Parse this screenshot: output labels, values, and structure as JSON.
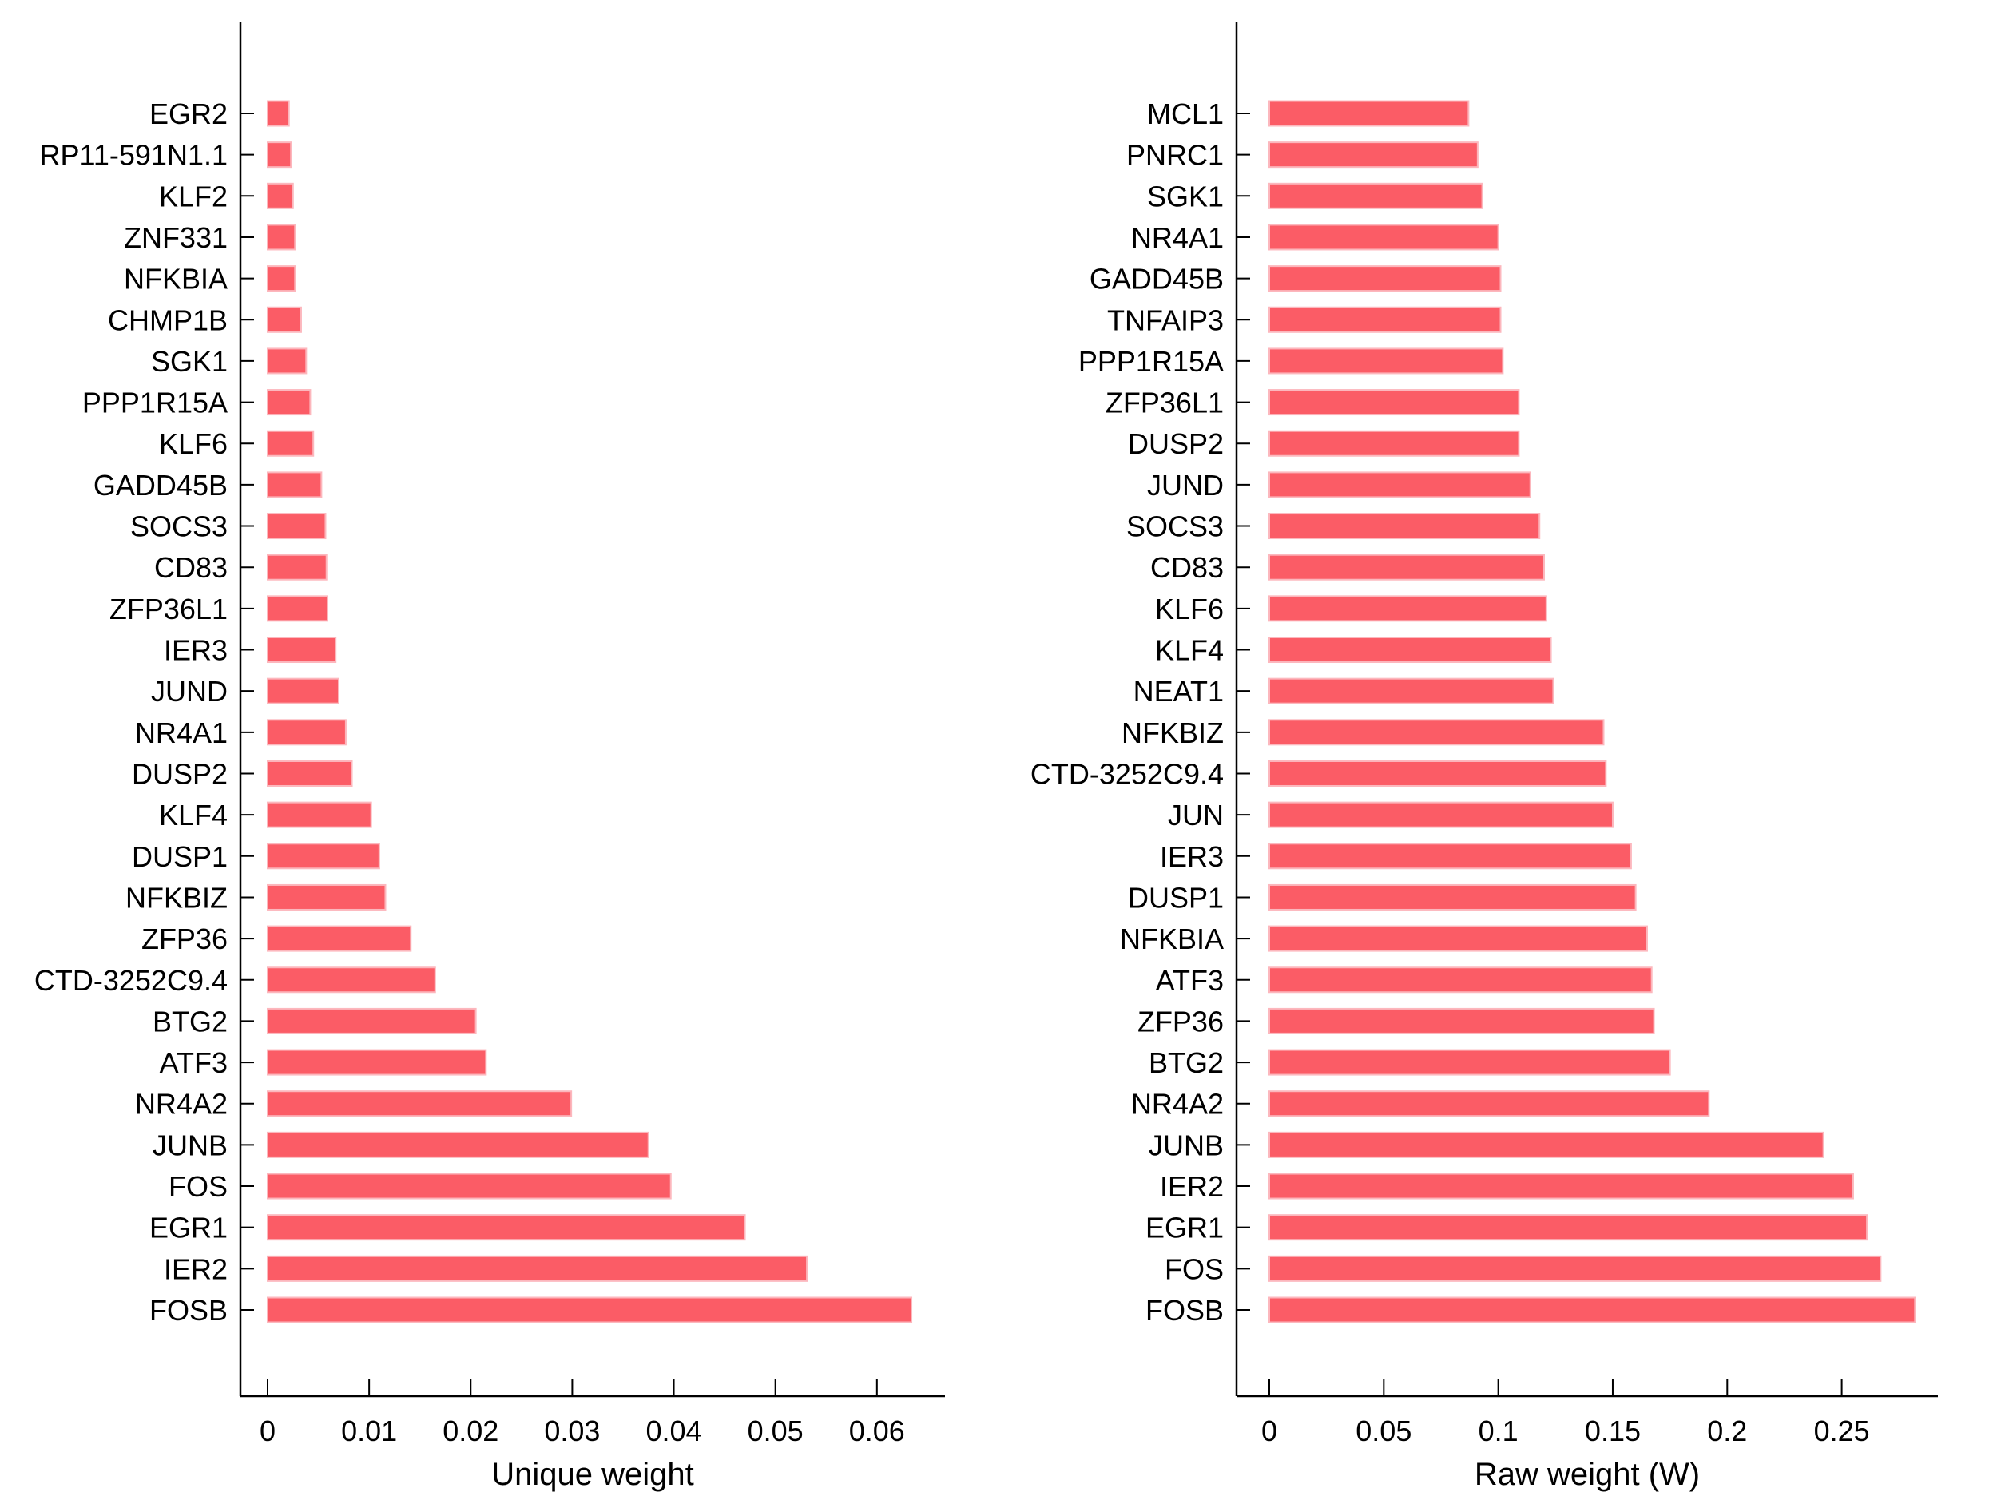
{
  "figure": {
    "background_color": "#ffffff",
    "bar_fill_color": "#fb5c66",
    "bar_edge_color": "#fcb7bd",
    "axis_color": "#000000",
    "text_color": "#000000"
  },
  "chart_data": [
    {
      "type": "bar",
      "orientation": "horizontal",
      "panel": "left",
      "title": "",
      "xlabel": "Unique weight",
      "ylabel": "",
      "grid": false,
      "legend": null,
      "xlim": [
        0,
        0.0667
      ],
      "xtick_values": [
        0,
        0.01,
        0.02,
        0.03,
        0.04,
        0.05,
        0.06
      ],
      "xtick_labels": [
        "0",
        "0.01",
        "0.02",
        "0.03",
        "0.04",
        "0.05",
        "0.06"
      ],
      "categories_top_to_bottom": [
        "EGR2",
        "RP11-591N1.1",
        "KLF2",
        "ZNF331",
        "NFKBIA",
        "CHMP1B",
        "SGK1",
        "PPP1R15A",
        "KLF6",
        "GADD45B",
        "SOCS3",
        "CD83",
        "ZFP36L1",
        "IER3",
        "JUND",
        "NR4A1",
        "DUSP2",
        "KLF4",
        "DUSP1",
        "NFKBIZ",
        "ZFP36",
        "CTD-3252C9.4",
        "BTG2",
        "ATF3",
        "NR4A2",
        "JUNB",
        "FOS",
        "EGR1",
        "IER2",
        "FOSB"
      ],
      "values": [
        0.0021,
        0.0023,
        0.0025,
        0.0027,
        0.0027,
        0.0033,
        0.0038,
        0.0042,
        0.0045,
        0.0053,
        0.0057,
        0.0058,
        0.0059,
        0.0067,
        0.007,
        0.0077,
        0.0083,
        0.0102,
        0.011,
        0.0116,
        0.0141,
        0.0165,
        0.0205,
        0.0215,
        0.0299,
        0.0375,
        0.0397,
        0.047,
        0.0531,
        0.0634
      ]
    },
    {
      "type": "bar",
      "orientation": "horizontal",
      "panel": "right",
      "title": "",
      "xlabel": "Raw weight (W)",
      "ylabel": "",
      "grid": false,
      "legend": null,
      "xlim": [
        0,
        0.292
      ],
      "xtick_values": [
        0,
        0.05,
        0.1,
        0.15,
        0.2,
        0.25
      ],
      "xtick_labels": [
        "0",
        "0.05",
        "0.1",
        "0.15",
        "0.2",
        "0.25"
      ],
      "categories_top_to_bottom": [
        "MCL1",
        "PNRC1",
        "SGK1",
        "NR4A1",
        "GADD45B",
        "TNFAIP3",
        "PPP1R15A",
        "ZFP36L1",
        "DUSP2",
        "JUND",
        "SOCS3",
        "CD83",
        "KLF6",
        "KLF4",
        "NEAT1",
        "NFKBIZ",
        "CTD-3252C9.4",
        "JUN",
        "IER3",
        "DUSP1",
        "NFKBIA",
        "ATF3",
        "ZFP36",
        "BTG2",
        "NR4A2",
        "JUNB",
        "IER2",
        "EGR1",
        "FOS",
        "FOSB"
      ],
      "values": [
        0.087,
        0.091,
        0.093,
        0.1,
        0.101,
        0.101,
        0.102,
        0.109,
        0.109,
        0.114,
        0.118,
        0.12,
        0.121,
        0.123,
        0.124,
        0.146,
        0.147,
        0.15,
        0.158,
        0.16,
        0.165,
        0.167,
        0.168,
        0.175,
        0.192,
        0.242,
        0.255,
        0.261,
        0.267,
        0.282
      ]
    }
  ]
}
